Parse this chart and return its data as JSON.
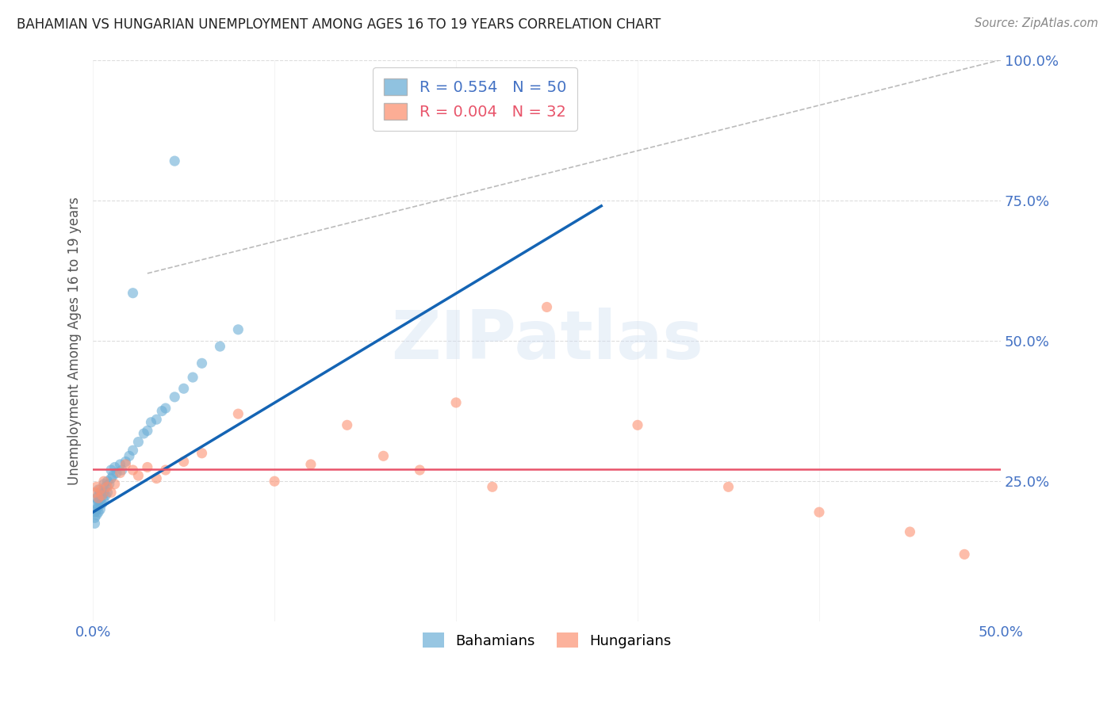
{
  "title": "BAHAMIAN VS HUNGARIAN UNEMPLOYMENT AMONG AGES 16 TO 19 YEARS CORRELATION CHART",
  "source": "Source: ZipAtlas.com",
  "ylabel": "Unemployment Among Ages 16 to 19 years",
  "xlim": [
    0.0,
    0.5
  ],
  "ylim": [
    0.0,
    1.0
  ],
  "xtick_positions": [
    0.0,
    0.1,
    0.2,
    0.3,
    0.4,
    0.5
  ],
  "xtick_labels": [
    "0.0%",
    "",
    "",
    "",
    "",
    "50.0%"
  ],
  "ytick_positions": [
    0.25,
    0.5,
    0.75,
    1.0
  ],
  "ytick_labels": [
    "25.0%",
    "50.0%",
    "75.0%",
    "100.0%"
  ],
  "bahamian_color": "#6baed6",
  "hungarian_color": "#fc9272",
  "bahamian_R": 0.554,
  "bahamian_N": 50,
  "hungarian_R": 0.004,
  "hungarian_N": 32,
  "blue_line_color": "#1464b4",
  "pink_line_color": "#e8546a",
  "diagonal_color": "#bbbbbb",
  "watermark_text": "ZIPatlas",
  "bahamian_x": [
    0.001,
    0.001,
    0.001,
    0.002,
    0.002,
    0.002,
    0.002,
    0.003,
    0.003,
    0.003,
    0.003,
    0.003,
    0.004,
    0.004,
    0.004,
    0.005,
    0.005,
    0.006,
    0.006,
    0.006,
    0.007,
    0.007,
    0.008,
    0.008,
    0.009,
    0.01,
    0.01,
    0.011,
    0.012,
    0.013,
    0.015,
    0.016,
    0.018,
    0.02,
    0.022,
    0.025,
    0.028,
    0.03,
    0.032,
    0.035,
    0.038,
    0.04,
    0.045,
    0.05,
    0.055,
    0.06,
    0.07,
    0.08,
    0.045,
    0.022
  ],
  "bahamian_y": [
    0.175,
    0.185,
    0.195,
    0.19,
    0.2,
    0.21,
    0.22,
    0.195,
    0.205,
    0.215,
    0.225,
    0.235,
    0.2,
    0.215,
    0.23,
    0.21,
    0.225,
    0.215,
    0.23,
    0.245,
    0.225,
    0.24,
    0.23,
    0.25,
    0.245,
    0.255,
    0.27,
    0.26,
    0.275,
    0.265,
    0.28,
    0.27,
    0.285,
    0.295,
    0.305,
    0.32,
    0.335,
    0.34,
    0.355,
    0.36,
    0.375,
    0.38,
    0.4,
    0.415,
    0.435,
    0.46,
    0.49,
    0.52,
    0.82,
    0.585
  ],
  "hungarian_x": [
    0.001,
    0.002,
    0.003,
    0.004,
    0.005,
    0.006,
    0.008,
    0.01,
    0.012,
    0.015,
    0.018,
    0.022,
    0.025,
    0.03,
    0.035,
    0.04,
    0.05,
    0.06,
    0.08,
    0.1,
    0.12,
    0.14,
    0.16,
    0.18,
    0.2,
    0.22,
    0.25,
    0.3,
    0.35,
    0.4,
    0.45,
    0.48
  ],
  "hungarian_y": [
    0.23,
    0.24,
    0.22,
    0.235,
    0.225,
    0.25,
    0.24,
    0.23,
    0.245,
    0.265,
    0.28,
    0.27,
    0.26,
    0.275,
    0.255,
    0.27,
    0.285,
    0.3,
    0.37,
    0.25,
    0.28,
    0.35,
    0.295,
    0.27,
    0.39,
    0.24,
    0.56,
    0.35,
    0.24,
    0.195,
    0.16,
    0.12
  ],
  "blue_line_x": [
    0.0,
    0.28
  ],
  "blue_line_y": [
    0.195,
    0.74
  ],
  "pink_line_y": 0.272,
  "diag_line_x": [
    0.03,
    0.5
  ],
  "diag_line_y": [
    0.62,
    1.0
  ]
}
